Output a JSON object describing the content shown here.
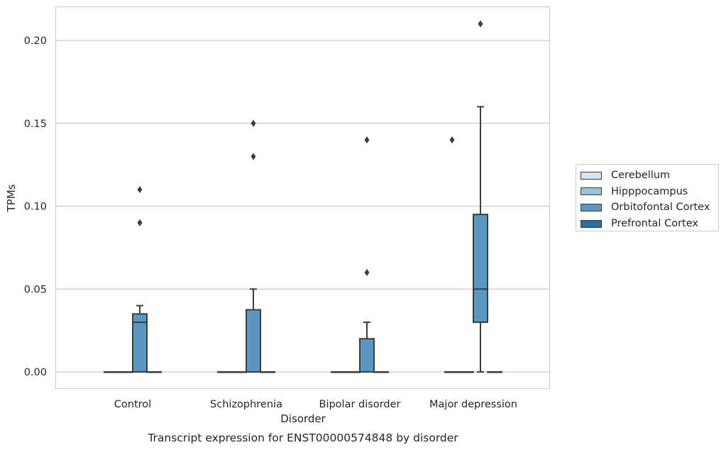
{
  "chart_data": {
    "type": "box",
    "title": "Transcript expression for ENST00000574848 by disorder",
    "xlabel": "Disorder",
    "ylabel": "TPMs",
    "ylim": [
      -0.01,
      0.22
    ],
    "yticks": [
      "0.00",
      "0.05",
      "0.10",
      "0.15",
      "0.20"
    ],
    "ytick_values": [
      0.0,
      0.05,
      0.1,
      0.15,
      0.2
    ],
    "grid": true,
    "legend_position": "right",
    "categories": [
      "Control",
      "Schizophrenia",
      "Bipolar disorder",
      "Major depression"
    ],
    "series": [
      {
        "name": "Cerebellum",
        "color": "#d4e4f0",
        "boxes": [
          {
            "q1": 0,
            "median": 0,
            "q3": 0,
            "whisker_low": 0,
            "whisker_high": 0,
            "outliers": []
          },
          {
            "q1": 0,
            "median": 0,
            "q3": 0,
            "whisker_low": 0,
            "whisker_high": 0,
            "outliers": []
          },
          {
            "q1": 0,
            "median": 0,
            "q3": 0,
            "whisker_low": 0,
            "whisker_high": 0,
            "outliers": []
          },
          {
            "q1": 0,
            "median": 0,
            "q3": 0,
            "whisker_low": 0,
            "whisker_high": 0,
            "outliers": [
              0.14
            ]
          }
        ]
      },
      {
        "name": "Hipppocampus",
        "color": "#9cc3dc",
        "boxes": [
          {
            "q1": 0,
            "median": 0,
            "q3": 0,
            "whisker_low": 0,
            "whisker_high": 0,
            "outliers": []
          },
          {
            "q1": 0,
            "median": 0,
            "q3": 0,
            "whisker_low": 0,
            "whisker_high": 0,
            "outliers": []
          },
          {
            "q1": 0,
            "median": 0,
            "q3": 0,
            "whisker_low": 0,
            "whisker_high": 0,
            "outliers": []
          },
          {
            "q1": 0,
            "median": 0,
            "q3": 0,
            "whisker_low": 0,
            "whisker_high": 0,
            "outliers": []
          }
        ]
      },
      {
        "name": "Orbitofontal Cortex",
        "color": "#5a97c1",
        "boxes": [
          {
            "q1": 0,
            "median": 0.03,
            "q3": 0.035,
            "whisker_low": 0,
            "whisker_high": 0.04,
            "outliers": [
              0.09,
              0.11
            ]
          },
          {
            "q1": 0,
            "median": 0,
            "q3": 0.0375,
            "whisker_low": 0,
            "whisker_high": 0.05,
            "outliers": [
              0.13,
              0.15
            ]
          },
          {
            "q1": 0,
            "median": 0,
            "q3": 0.02,
            "whisker_low": 0,
            "whisker_high": 0.03,
            "outliers": [
              0.06,
              0.14
            ]
          },
          {
            "q1": 0.03,
            "median": 0.05,
            "q3": 0.095,
            "whisker_low": 0,
            "whisker_high": 0.16,
            "outliers": [
              0.21
            ]
          }
        ]
      },
      {
        "name": "Prefrontal Cortex",
        "color": "#2e6ca4",
        "boxes": [
          {
            "q1": 0,
            "median": 0,
            "q3": 0,
            "whisker_low": 0,
            "whisker_high": 0,
            "outliers": []
          },
          {
            "q1": 0,
            "median": 0,
            "q3": 0,
            "whisker_low": 0,
            "whisker_high": 0,
            "outliers": []
          },
          {
            "q1": 0,
            "median": 0,
            "q3": 0,
            "whisker_low": 0,
            "whisker_high": 0,
            "outliers": []
          },
          {
            "q1": 0,
            "median": 0,
            "q3": 0,
            "whisker_low": 0,
            "whisker_high": 0,
            "outliers": []
          }
        ]
      }
    ]
  }
}
